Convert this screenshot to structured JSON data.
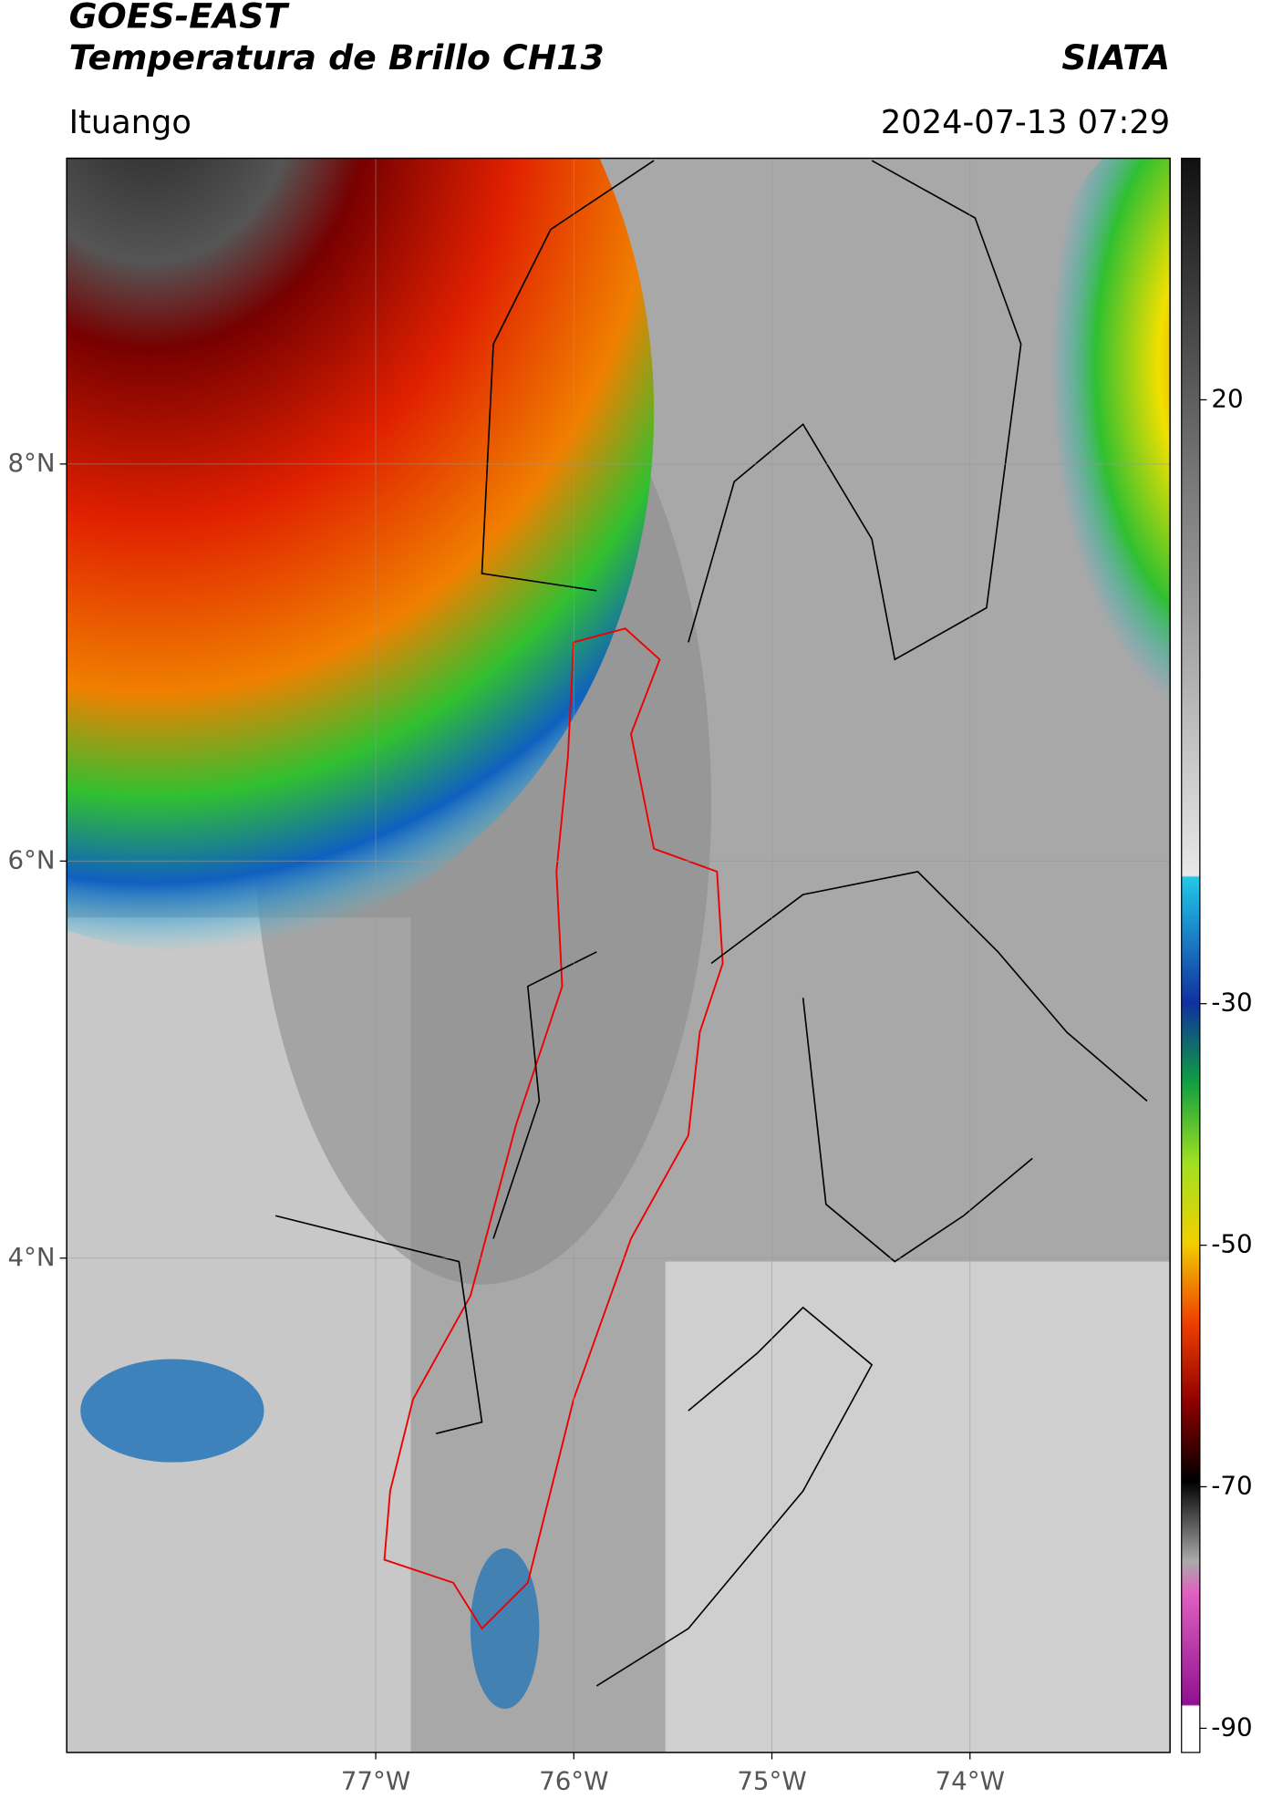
{
  "chart_data": {
    "type": "map",
    "title": "GOES-EAST",
    "subtitle": "Temperatura de Brillo CH13",
    "source": "SIATA",
    "location": "Ituango",
    "timestamp": "2024-07-13 07:29",
    "xlim": [
      -78.56,
      -72.99
    ],
    "ylim": [
      1.51,
      9.54
    ],
    "xticks": [
      {
        "value": -77,
        "label": "77°W"
      },
      {
        "value": -76,
        "label": "76°W"
      },
      {
        "value": -75,
        "label": "75°W"
      },
      {
        "value": -74,
        "label": "74°W"
      }
    ],
    "yticks": [
      {
        "value": 8,
        "label": "8°N"
      },
      {
        "value": 6,
        "label": "6°N"
      },
      {
        "value": 4,
        "label": "4°N"
      }
    ],
    "grid": true,
    "colorbar": {
      "lim": [
        -92,
        40
      ],
      "ticks": [
        20,
        -30,
        -50,
        -70,
        -90
      ]
    }
  }
}
